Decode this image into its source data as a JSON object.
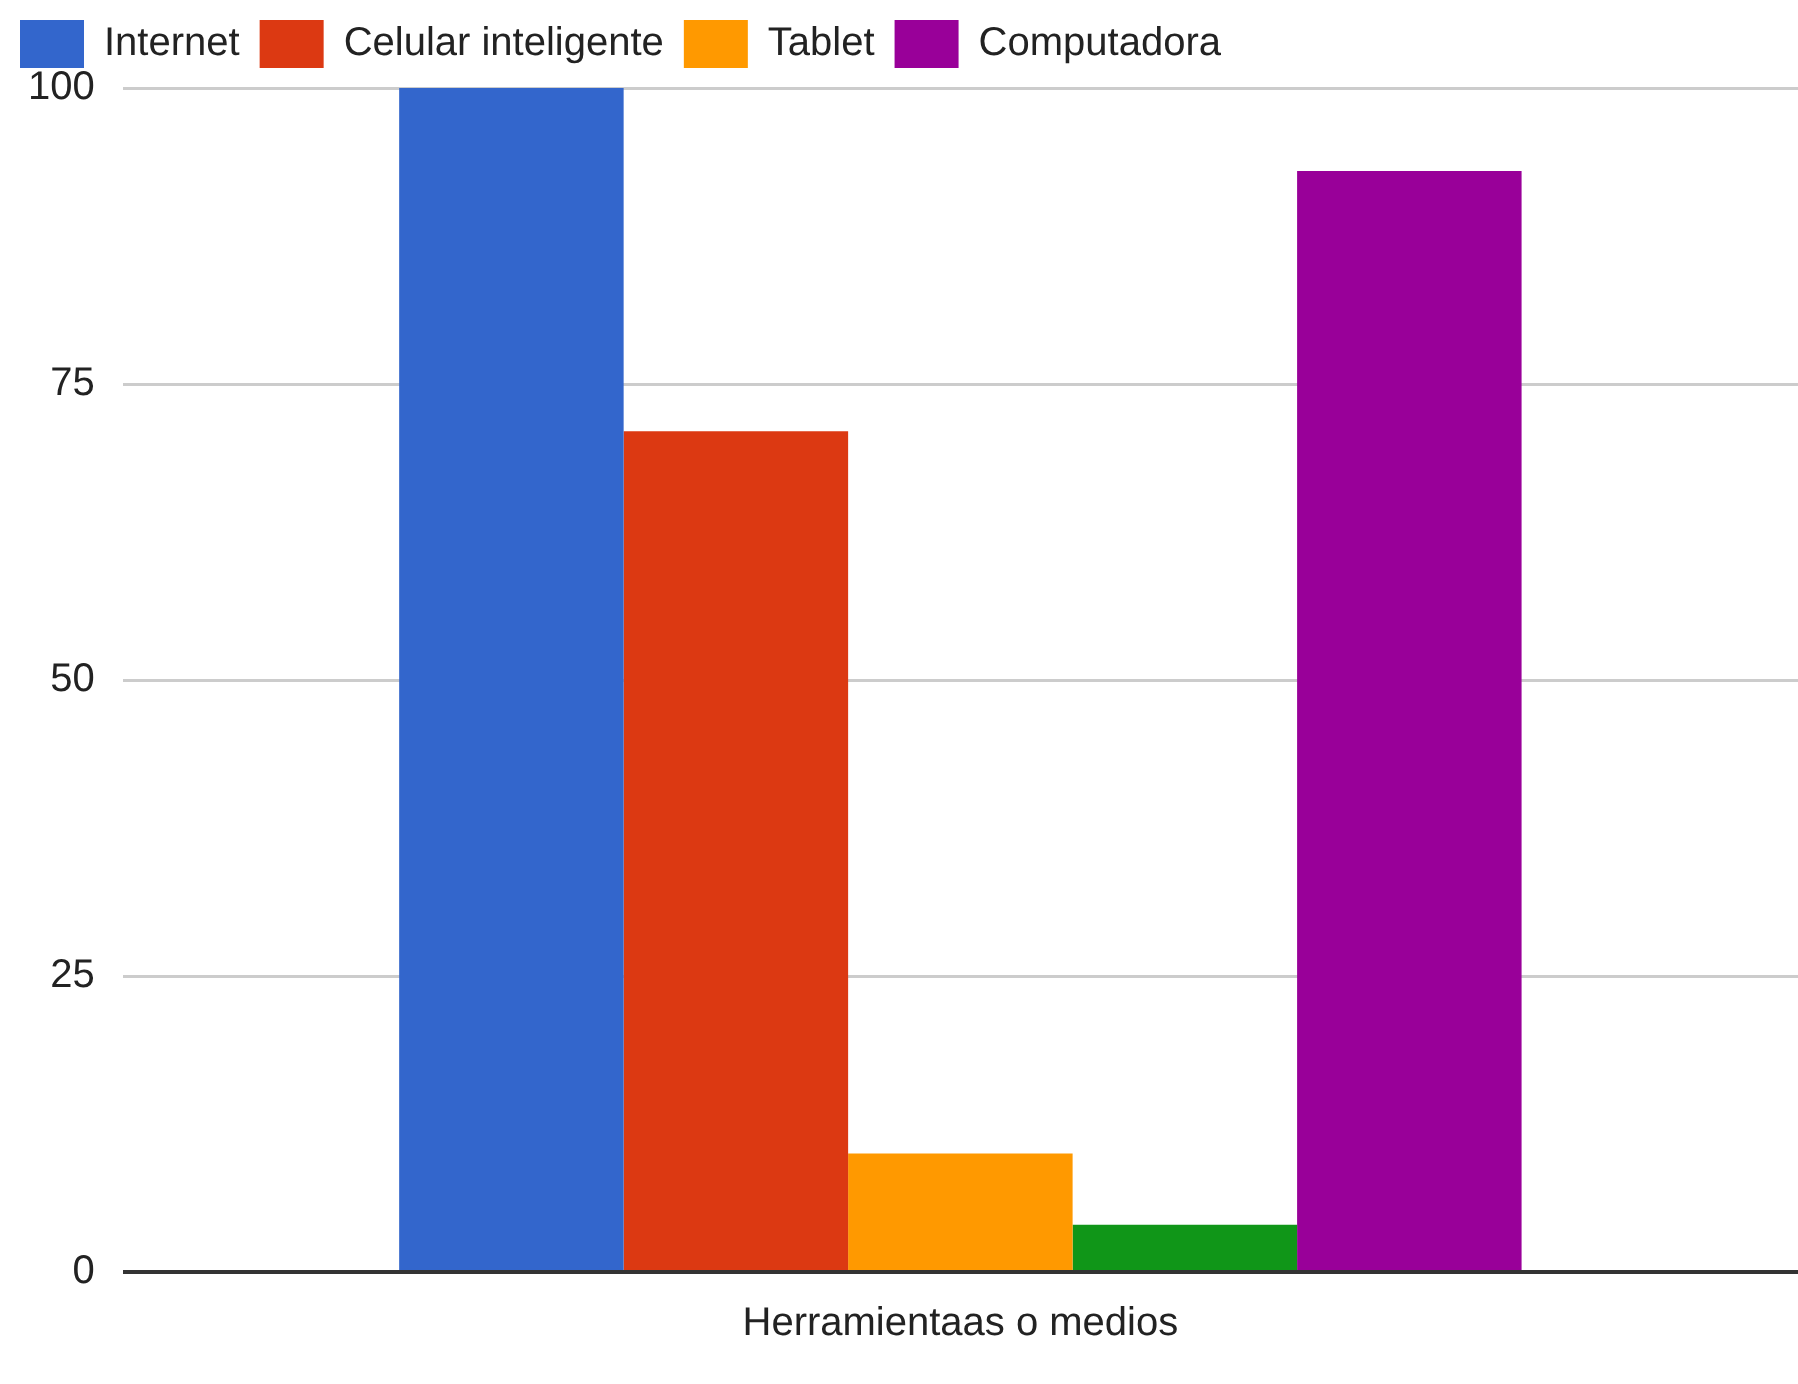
{
  "chart_data": {
    "type": "bar",
    "categories": [
      "Herramientaas o medios"
    ],
    "series": [
      {
        "name": "Internet",
        "color": "#3366cc",
        "values": [
          100
        ]
      },
      {
        "name": "Celular inteligente",
        "color": "#dc3912",
        "values": [
          71
        ]
      },
      {
        "name": "Tablet",
        "color": "#ff9900",
        "values": [
          10
        ]
      },
      {
        "color": "#109618",
        "values": [
          4
        ]
      },
      {
        "name": "Computadora",
        "color": "#990099",
        "values": [
          93
        ]
      }
    ],
    "ylim": [
      0,
      100
    ],
    "yticks": [
      0,
      25,
      50,
      75,
      100
    ],
    "grid": "y",
    "legend": "top left"
  }
}
